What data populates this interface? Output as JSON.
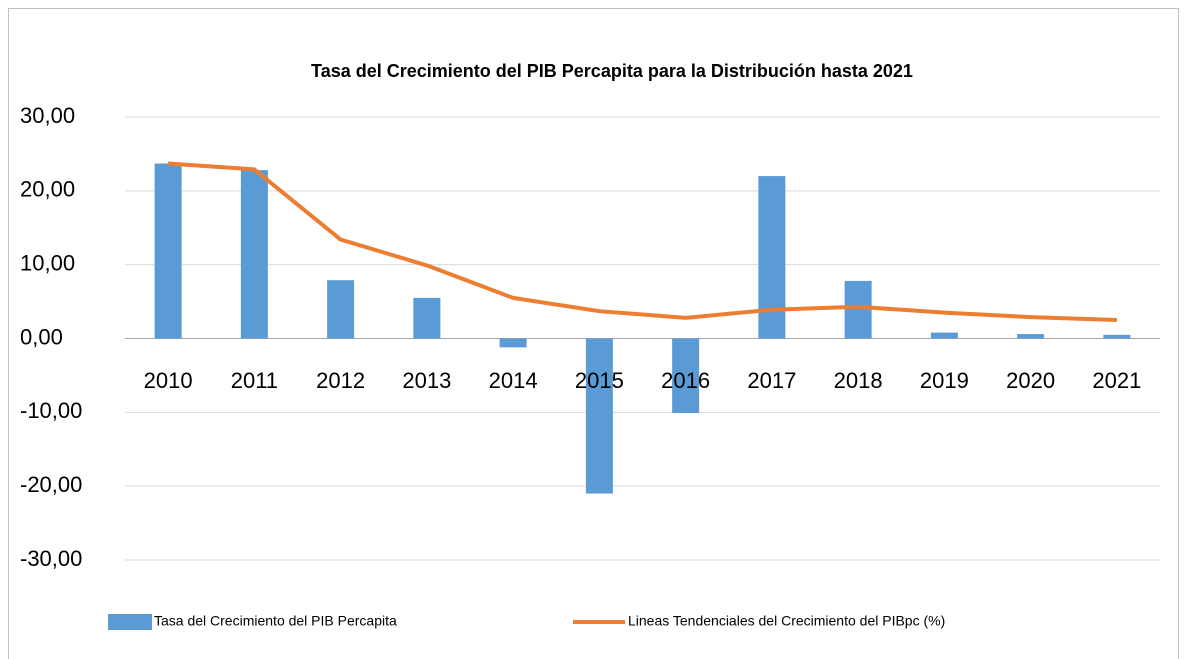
{
  "chart_data": {
    "type": "bar",
    "title": "Tasa del Crecimiento del PIB Percapita para la Distribución hasta 2021",
    "categories": [
      "2010",
      "2011",
      "2012",
      "2013",
      "2014",
      "2015",
      "2016",
      "2017",
      "2018",
      "2019",
      "2020",
      "2021"
    ],
    "series": [
      {
        "name": "Tasa del Crecimiento del PIB Percapita",
        "type": "bar",
        "color": "#5b9bd5",
        "values": [
          23.7,
          22.8,
          7.9,
          5.5,
          -1.2,
          -21.0,
          -10.1,
          22.0,
          7.8,
          0.8,
          0.6,
          0.5
        ]
      },
      {
        "name": "Lineas Tendenciales del Crecimiento del PIBpc (%)",
        "type": "line",
        "color": "#ed7d31",
        "values": [
          23.7,
          22.9,
          13.4,
          9.9,
          5.5,
          3.7,
          2.8,
          3.9,
          4.3,
          3.5,
          2.9,
          2.5
        ]
      }
    ],
    "ylim": [
      -30,
      30
    ],
    "yticks": [
      {
        "value": -30,
        "label": "-30,00"
      },
      {
        "value": -20,
        "label": "-20,00"
      },
      {
        "value": -10,
        "label": "-10,00"
      },
      {
        "value": 0,
        "label": "0,00"
      },
      {
        "value": 10,
        "label": "10,00"
      },
      {
        "value": 20,
        "label": "20,00"
      },
      {
        "value": 30,
        "label": "30,00"
      }
    ],
    "grid": true,
    "legend": "bottom"
  }
}
